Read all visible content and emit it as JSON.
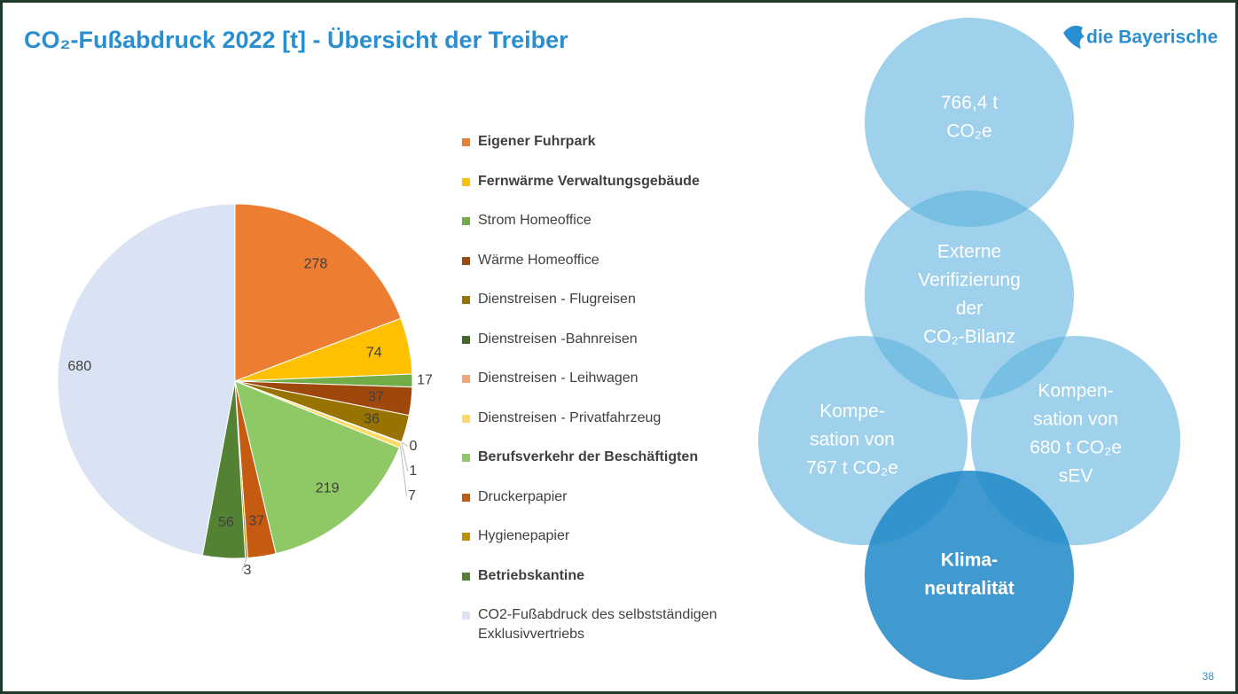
{
  "chart_data": {
    "type": "pie",
    "title": "CO₂-Fußabdruck 2022 [t] - Übersicht der Treiber",
    "categories": [
      "Eigener Fuhrpark",
      "Fernwärme Verwaltungsgebäude",
      "Strom Homeoffice",
      "Wärme Homeoffice",
      "Dienstreisen - Flugreisen",
      "Dienstreisen -Bahnreisen",
      "Dienstreisen - Leihwagen",
      "Dienstreisen - Privatfahrzeug",
      "Berufsverkehr der Beschäftigten",
      "Druckerpapier",
      "Hygienepapier",
      "Betriebskantine",
      "CO2-Fußabdruck des selbstständigen Exklusivvertriebs"
    ],
    "values": [
      278,
      74,
      17,
      37,
      36,
      0,
      1,
      7,
      219,
      37,
      3,
      56,
      680
    ],
    "colors": [
      "#ed7d31",
      "#ffc000",
      "#70ad47",
      "#9e480e",
      "#997300",
      "#43682b",
      "#f4a276",
      "#ffd966",
      "#8fc965",
      "#c55a11",
      "#bf9000",
      "#548235",
      "#dae3f3"
    ],
    "legend_bold": [
      true,
      true,
      false,
      false,
      false,
      false,
      false,
      false,
      true,
      false,
      false,
      true,
      false
    ]
  },
  "diagram": {
    "circles": [
      {
        "lines": [
          "766,4 t",
          "CO₂e"
        ]
      },
      {
        "lines": [
          "Externe",
          "Verifizierung",
          "der",
          "CO₂-Bilanz"
        ]
      },
      {
        "lines": [
          "Kompe-",
          "sation von",
          "767 t CO₂e"
        ]
      },
      {
        "lines": [
          "Kompen-",
          "sation von",
          "680 t CO₂e",
          "sEV"
        ]
      },
      {
        "lines": [
          "Klima-",
          "neutralität"
        ]
      }
    ]
  },
  "logo": "die Bayerische",
  "page_number": "38"
}
